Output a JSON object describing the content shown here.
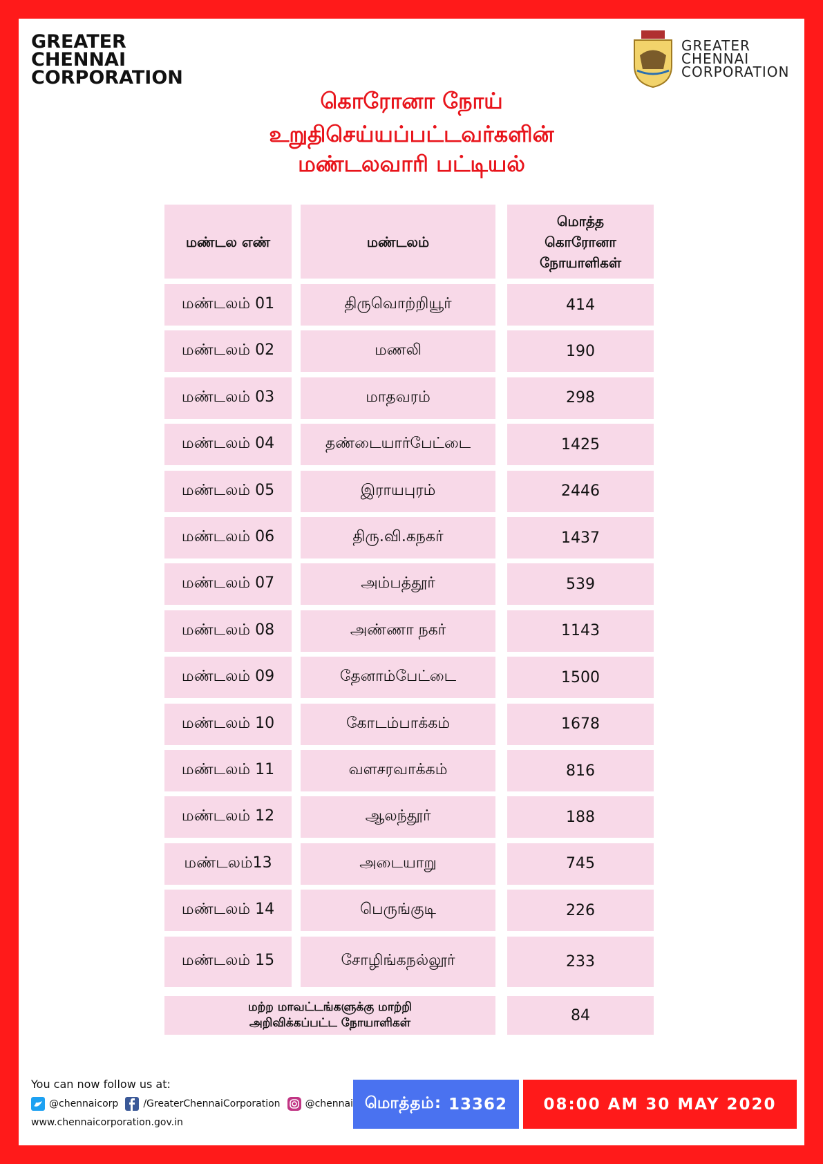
{
  "header": {
    "left_logo": [
      "GREATER",
      "CHENNAI",
      "CORPORATION"
    ],
    "right_logo": [
      "GREATER",
      "CHENNAI",
      "CORPORATION"
    ],
    "title": [
      "கொரோனா நோய்",
      "உறுதிசெய்யப்பட்டவர்களின்",
      "மண்டலவாரி பட்டியல்"
    ]
  },
  "table": {
    "columns": [
      "மண்டல எண்",
      "மண்டலம்",
      "மொத்த கொரோனா நோயாளிகள்"
    ],
    "rows": [
      [
        "மண்டலம் 01",
        "திருவொற்றியூர்",
        "414"
      ],
      [
        "மண்டலம் 02",
        "மணலி",
        "190"
      ],
      [
        "மண்டலம் 03",
        "மாதவரம்",
        "298"
      ],
      [
        "மண்டலம் 04",
        "தண்டையார்பேட்டை",
        "1425"
      ],
      [
        "மண்டலம் 05",
        "இராயபுரம்",
        "2446"
      ],
      [
        "மண்டலம் 06",
        "திரு.வி.கநகர்",
        "1437"
      ],
      [
        "மண்டலம் 07",
        "அம்பத்தூர்",
        "539"
      ],
      [
        "மண்டலம் 08",
        "அண்ணா நகர்",
        "1143"
      ],
      [
        "மண்டலம் 09",
        "தேனாம்பேட்டை",
        "1500"
      ],
      [
        "மண்டலம் 10",
        "கோடம்பாக்கம்",
        "1678"
      ],
      [
        "மண்டலம் 11",
        "வளசரவாக்கம்",
        "816"
      ],
      [
        "மண்டலம் 12",
        "ஆலந்தூர்",
        "188"
      ],
      [
        "மண்டலம்13",
        "அடையாறு",
        "745"
      ],
      [
        "மண்டலம் 14",
        "பெருங்குடி",
        "226"
      ],
      [
        "மண்டலம் 15",
        "சோழிங்கநல்லூர்",
        "233"
      ]
    ],
    "other": {
      "label": [
        "மற்ற மாவட்டங்களுக்கு மாற்றி",
        "அறிவிக்கப்பட்ட நோயாளிகள்"
      ],
      "count": "84"
    }
  },
  "footer": {
    "follow": "You can now follow us at:",
    "twitter": "@chennaicorp",
    "facebook": "/GreaterChennaiCorporation",
    "instagram": "@chennaicorp",
    "website": "www.chennaicorporation.gov.in",
    "total_label": "மொத்தம்:",
    "total": "13362",
    "timestamp": "08:00 AM 30 MAY 2020"
  }
}
